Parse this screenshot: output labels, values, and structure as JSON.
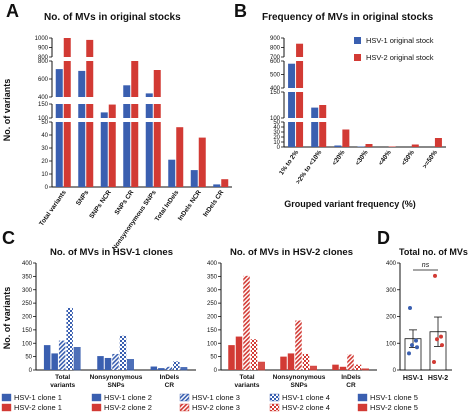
{
  "colors": {
    "hsv1": "#3a5fb0",
    "hsv2": "#d23a34",
    "hsv1_light": "#8ea2cf",
    "hsv2_light": "#e39590"
  },
  "panel_letters": [
    "A",
    "B",
    "C",
    "D"
  ],
  "chart_data": [
    {
      "panel": "A",
      "type": "bar",
      "title": "No. of MVs in original stocks",
      "ylabel": "No. of variants",
      "xlabel": "",
      "axis_breaks": true,
      "segments": [
        {
          "range": [
            800,
            1000
          ],
          "ticks": [
            "800",
            "900",
            "1000"
          ]
        },
        {
          "range": [
            400,
            800
          ],
          "ticks": [
            "400",
            "600",
            "800"
          ]
        },
        {
          "range": [
            100,
            150
          ],
          "ticks": [
            "100",
            "150"
          ]
        },
        {
          "range": [
            0,
            50
          ],
          "ticks": [
            "0",
            "10",
            "20",
            "30",
            "40",
            "50"
          ]
        }
      ],
      "categories": [
        "Total variants",
        "SNPs",
        "SNPs NCR",
        "SNPs CR",
        "Nonsynonymous SNPs",
        "Total InDels",
        "InDels NCR",
        "InDels CR"
      ],
      "series": [
        {
          "name": "HSV-1 original stock",
          "values": [
            710,
            690,
            120,
            530,
            440,
            21,
            13,
            2
          ]
        },
        {
          "name": "HSV-2 original stock",
          "values": [
            1040,
            980,
            148,
            800,
            700,
            46,
            38,
            6
          ]
        }
      ]
    },
    {
      "panel": "B",
      "type": "bar",
      "title": "Frequency of MVs in original stocks",
      "xlabel": "Grouped variant frequency (%)",
      "ylabel": "",
      "axis_breaks": true,
      "segments": [
        {
          "range": [
            700,
            900
          ],
          "ticks": [
            "700",
            "800",
            "900"
          ]
        },
        {
          "range": [
            400,
            600
          ],
          "ticks": [
            "400",
            "500",
            "600"
          ]
        },
        {
          "range": [
            100,
            150
          ],
          "ticks": [
            "100",
            "150"
          ]
        },
        {
          "range": [
            0,
            50
          ],
          "ticks": [
            "0",
            "10",
            "20",
            "30",
            "40",
            "50"
          ]
        }
      ],
      "categories": [
        "1% to 2%",
        ">2% to <10%",
        "<20%",
        "<30%",
        "<40%",
        "<50%",
        ">=50%"
      ],
      "series": [
        {
          "name": "HSV-1 original stock",
          "values": [
            580,
            120,
            3,
            1,
            0,
            0,
            0
          ]
        },
        {
          "name": "HSV-2 original stock",
          "values": [
            840,
            125,
            35,
            6,
            1,
            5,
            18
          ]
        }
      ],
      "legend": "top-right"
    },
    {
      "panel": "C-left",
      "type": "bar",
      "title": "No. of MVs in HSV-1 clones",
      "ylabel": "No. of variants",
      "ylim": [
        0,
        400
      ],
      "yticks": [
        "0",
        "50",
        "100",
        "150",
        "200",
        "250",
        "300",
        "350",
        "400"
      ],
      "categories": [
        "Total variants",
        "Nonsynonymous SNPs",
        "InDels CR"
      ],
      "series": [
        {
          "name": "HSV-1 clone 1",
          "values": [
            93,
            52,
            13
          ]
        },
        {
          "name": "HSV-1 clone 2",
          "values": [
            62,
            45,
            7
          ]
        },
        {
          "name": "HSV-1 clone 3",
          "values": [
            110,
            60,
            12
          ]
        },
        {
          "name": "HSV-1 clone 4",
          "values": [
            232,
            128,
            32
          ]
        },
        {
          "name": "HSV-1 clone 5",
          "values": [
            85,
            40,
            10
          ]
        }
      ]
    },
    {
      "panel": "C-right",
      "type": "bar",
      "title": "No. of MVs in HSV-2 clones",
      "ylim": [
        0,
        400
      ],
      "yticks": [
        "0",
        "50",
        "100",
        "150",
        "200",
        "250",
        "300",
        "350",
        "400"
      ],
      "categories": [
        "Total variants",
        "Nonsynonymous SNPs",
        "InDels CR"
      ],
      "series": [
        {
          "name": "HSV-2 clone 1",
          "values": [
            93,
            50,
            20
          ]
        },
        {
          "name": "HSV-2 clone 2",
          "values": [
            125,
            62,
            12
          ]
        },
        {
          "name": "HSV-2 clone 3",
          "values": [
            352,
            185,
            58
          ]
        },
        {
          "name": "HSV-2 clone 4",
          "values": [
            115,
            60,
            20
          ]
        },
        {
          "name": "HSV-2 clone 5",
          "values": [
            30,
            15,
            5
          ]
        }
      ]
    },
    {
      "panel": "D",
      "type": "bar",
      "title": "Total no. of MVs",
      "ylim": [
        0,
        400
      ],
      "yticks": [
        "0",
        "100",
        "200",
        "300",
        "400"
      ],
      "categories": [
        "HSV-1",
        "HSV-2"
      ],
      "values": [
        117,
        143
      ],
      "error": [
        33,
        55
      ],
      "points": [
        [
          232,
          110,
          93,
          85,
          62
        ],
        [
          352,
          125,
          115,
          93,
          30
        ]
      ],
      "significance": "ns"
    }
  ],
  "legend_c": [
    "HSV-1 clone 1",
    "HSV-1 clone 2",
    "HSV-1 clone 3",
    "HSV-1 clone 4",
    "HSV-1 clone 5",
    "HSV-2 clone 1",
    "HSV-2 clone 2",
    "HSV-2 clone 3",
    "HSV-2 clone 4",
    "HSV-2 clone 5"
  ]
}
